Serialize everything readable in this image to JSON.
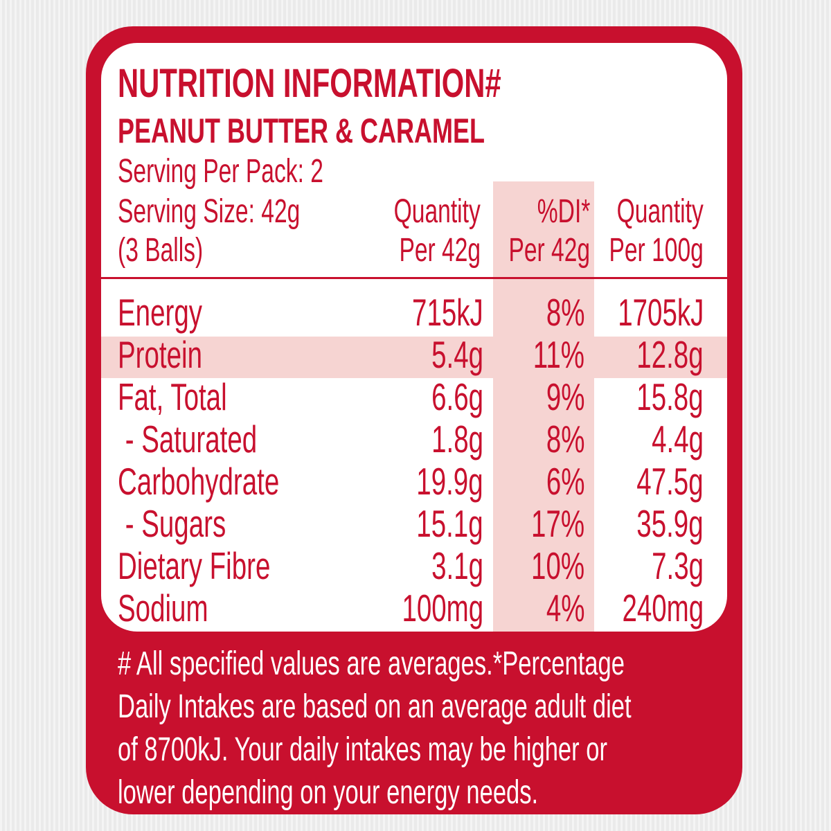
{
  "label": {
    "title": "NUTRITION INFORMATION#",
    "subtitle": "PEANUT BUTTER & CARAMEL",
    "serving_per_pack": "Serving Per Pack: 2",
    "serving_size": "Serving Size: 42g",
    "serving_size_note": "(3 Balls)"
  },
  "columns": {
    "qty_serving": [
      "Quantity",
      "Per 42g"
    ],
    "di": [
      "%DI*",
      "Per 42g"
    ],
    "qty_100g": [
      "Quantity",
      "Per 100g"
    ]
  },
  "rows": [
    {
      "name": "Energy",
      "qty_serving": "715kJ",
      "di": "8%",
      "qty_100g": "1705kJ"
    },
    {
      "name": "Protein",
      "qty_serving": "5.4g",
      "di": "11%",
      "qty_100g": "12.8g"
    },
    {
      "name": "Fat, Total",
      "qty_serving": "6.6g",
      "di": "9%",
      "qty_100g": "15.8g"
    },
    {
      "name": " - Saturated",
      "qty_serving": "1.8g",
      "di": "8%",
      "qty_100g": "4.4g"
    },
    {
      "name": "Carbohydrate",
      "qty_serving": "19.9g",
      "di": "6%",
      "qty_100g": "47.5g"
    },
    {
      "name": " - Sugars",
      "qty_serving": "15.1g",
      "di": "17%",
      "qty_100g": "35.9g"
    },
    {
      "name": "Dietary Fibre",
      "qty_serving": "3.1g",
      "di": "10%",
      "qty_100g": "7.3g"
    },
    {
      "name": "Sodium",
      "qty_serving": "100mg",
      "di": "4%",
      "qty_100g": "240mg"
    }
  ],
  "footnote": [
    "# All specified values are averages.*Percentage",
    "Daily Intakes are based on an average adult diet",
    "of 8700kJ. Your daily intakes may be higher or",
    "lower depending on your energy needs."
  ],
  "colors": {
    "brand_red": "#c8102e",
    "highlight": "#f6d4d2",
    "background": "#eeeeee"
  }
}
